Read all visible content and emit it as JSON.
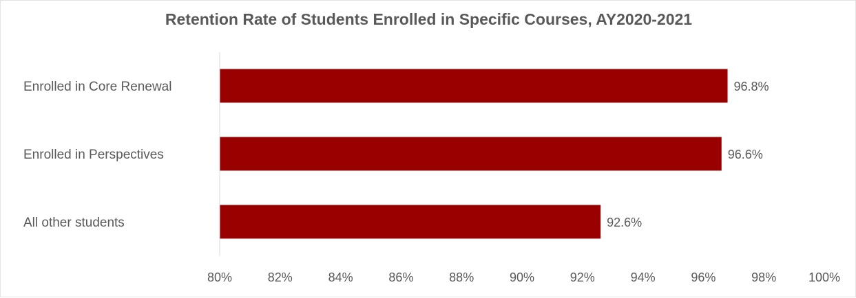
{
  "chart_data": {
    "type": "bar",
    "orientation": "horizontal",
    "title": "Retention Rate of Students Enrolled in Specific Courses, AY2020-2021",
    "categories": [
      "Enrolled in Core Renewal",
      "Enrolled in Perspectives",
      "All other students"
    ],
    "values": [
      96.8,
      96.6,
      92.6
    ],
    "data_labels": [
      "96.8%",
      "96.6%",
      "92.6%"
    ],
    "xlim": [
      80,
      100
    ],
    "x_ticks": [
      "80%",
      "82%",
      "84%",
      "86%",
      "88%",
      "90%",
      "92%",
      "94%",
      "96%",
      "98%",
      "100%"
    ],
    "grid": false,
    "legend": "none",
    "bar_color": "#990000",
    "xlabel": "",
    "ylabel": ""
  }
}
